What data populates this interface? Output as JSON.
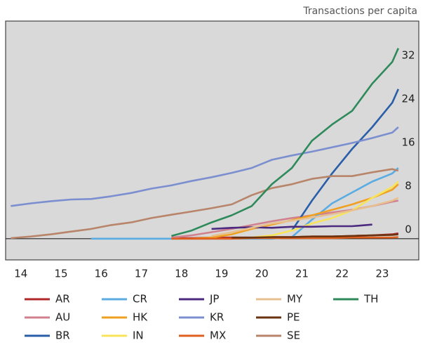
{
  "chart_data": {
    "type": "line",
    "title": "Transactions per capita",
    "x": [
      13.75,
      14.25,
      14.75,
      15.25,
      15.75,
      16.25,
      16.75,
      17.25,
      17.75,
      18.25,
      18.75,
      19.25,
      19.75,
      20.25,
      20.75,
      21.25,
      21.75,
      22.25,
      22.75,
      23.25,
      23.4
    ],
    "xlim": [
      13.62,
      23.91
    ],
    "xticks": [
      14,
      15,
      16,
      17,
      18,
      19,
      20,
      21,
      22,
      23
    ],
    "ylim": [
      -3.9,
      40
    ],
    "yticks": [
      0,
      8,
      16,
      24,
      32
    ],
    "series": [
      {
        "name": "AR",
        "color": "#b0282a",
        "values": [
          null,
          null,
          null,
          null,
          null,
          null,
          null,
          null,
          0.1,
          0.1,
          0.2,
          0.2,
          0.2,
          0.3,
          0.3,
          0.4,
          0.4,
          0.5,
          0.6,
          0.8,
          1.0
        ]
      },
      {
        "name": "AU",
        "color": "#d0808e",
        "values": [
          null,
          null,
          null,
          null,
          null,
          null,
          null,
          null,
          0.2,
          0.6,
          1.2,
          1.8,
          2.5,
          3.2,
          3.8,
          4.3,
          4.8,
          5.3,
          6.0,
          6.8,
          7.0
        ]
      },
      {
        "name": "BR",
        "color": "#2a5ea8",
        "values": [
          null,
          null,
          null,
          null,
          null,
          null,
          null,
          null,
          null,
          null,
          null,
          null,
          null,
          null,
          1.5,
          7.0,
          12.0,
          16.5,
          20.5,
          25.0,
          27.5
        ]
      },
      {
        "name": "CR",
        "color": "#5aace2",
        "values": [
          null,
          null,
          null,
          null,
          0,
          0,
          0,
          0,
          0,
          0,
          0,
          0,
          0,
          0,
          0.3,
          3.5,
          6.5,
          8.5,
          10.5,
          12.0,
          13.0
        ]
      },
      {
        "name": "HK",
        "color": "#f0a020",
        "values": [
          null,
          null,
          null,
          null,
          null,
          null,
          null,
          null,
          null,
          0,
          0.2,
          0.8,
          1.8,
          2.6,
          3.4,
          4.3,
          5.3,
          6.3,
          7.5,
          9.0,
          10.0
        ]
      },
      {
        "name": "IN",
        "color": "#f8e45a",
        "values": [
          null,
          null,
          null,
          null,
          null,
          null,
          null,
          null,
          null,
          null,
          null,
          0,
          0.2,
          0.6,
          1.5,
          2.8,
          3.8,
          5.2,
          7.5,
          9.5,
          10.5
        ]
      },
      {
        "name": "JP",
        "color": "#4b2a80",
        "values": [
          null,
          null,
          null,
          null,
          null,
          null,
          null,
          null,
          null,
          null,
          1.8,
          2.0,
          2.1,
          2.0,
          2.2,
          2.2,
          2.3,
          2.3,
          2.6,
          null,
          null
        ]
      },
      {
        "name": "KR",
        "color": "#7b8fd0",
        "values": [
          6.0,
          6.5,
          6.9,
          7.2,
          7.3,
          7.8,
          8.4,
          9.2,
          9.8,
          10.6,
          11.3,
          12.1,
          13.0,
          14.5,
          15.3,
          16.0,
          16.8,
          17.6,
          18.5,
          19.5,
          20.5
        ]
      },
      {
        "name": "MX",
        "color": "#e06020",
        "values": [
          null,
          null,
          null,
          null,
          null,
          null,
          null,
          null,
          0,
          0,
          0,
          0,
          0.1,
          0.1,
          0.1,
          0.1,
          0.1,
          0.2,
          0.2,
          0.2,
          0.3
        ]
      },
      {
        "name": "MY",
        "color": "#e8c090",
        "values": [
          null,
          null,
          null,
          null,
          null,
          null,
          null,
          null,
          null,
          null,
          0.5,
          1.2,
          2.0,
          2.8,
          3.3,
          3.9,
          4.5,
          5.2,
          6.0,
          7.0,
          7.5
        ]
      },
      {
        "name": "PE",
        "color": "#6b3310",
        "values": [
          null,
          null,
          null,
          null,
          null,
          null,
          null,
          null,
          null,
          null,
          null,
          0.2,
          0.2,
          0.3,
          0.3,
          0.4,
          0.4,
          0.5,
          0.6,
          0.7,
          0.8
        ]
      },
      {
        "name": "SE",
        "color": "#b8856a",
        "values": [
          0.1,
          0.4,
          0.8,
          1.3,
          1.8,
          2.5,
          3.0,
          3.8,
          4.4,
          5.0,
          5.6,
          6.3,
          8.0,
          9.3,
          10.0,
          11.0,
          11.5,
          11.5,
          12.2,
          12.8,
          12.5
        ]
      },
      {
        "name": "TH",
        "color": "#2e8a5a",
        "values": [
          null,
          null,
          null,
          null,
          null,
          null,
          null,
          null,
          0.5,
          1.5,
          3.0,
          4.3,
          6.0,
          10.0,
          13.0,
          18.0,
          21.0,
          23.5,
          28.5,
          32.5,
          35.0
        ]
      }
    ]
  }
}
